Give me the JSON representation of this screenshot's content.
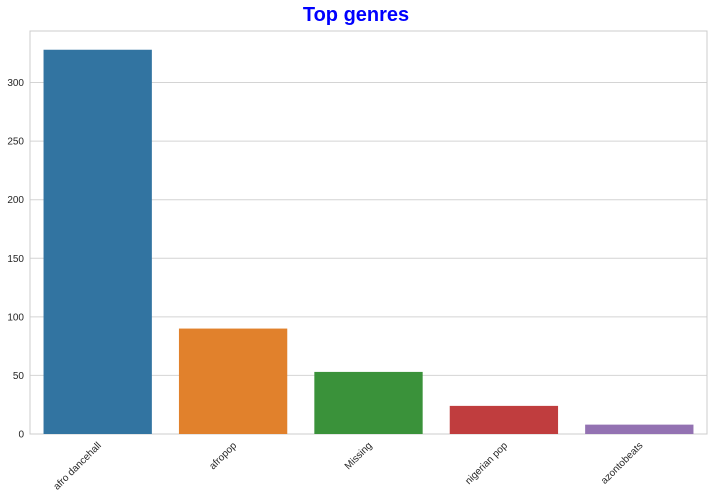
{
  "chart_data": {
    "type": "bar",
    "title": "Top genres",
    "xlabel": "",
    "ylabel": "",
    "categories": [
      "afro dancehall",
      "afropop",
      "Missing",
      "nigerian pop",
      "azontobeats"
    ],
    "values": [
      328,
      90,
      53,
      24,
      8
    ],
    "colors": [
      "#3274a1",
      "#e1812c",
      "#3a923a",
      "#c03d3e",
      "#9372b2"
    ],
    "ylim": [
      0,
      344
    ],
    "yticks": [
      0,
      50,
      100,
      150,
      200,
      250,
      300
    ],
    "grid": true,
    "title_color": "#0000ff"
  }
}
